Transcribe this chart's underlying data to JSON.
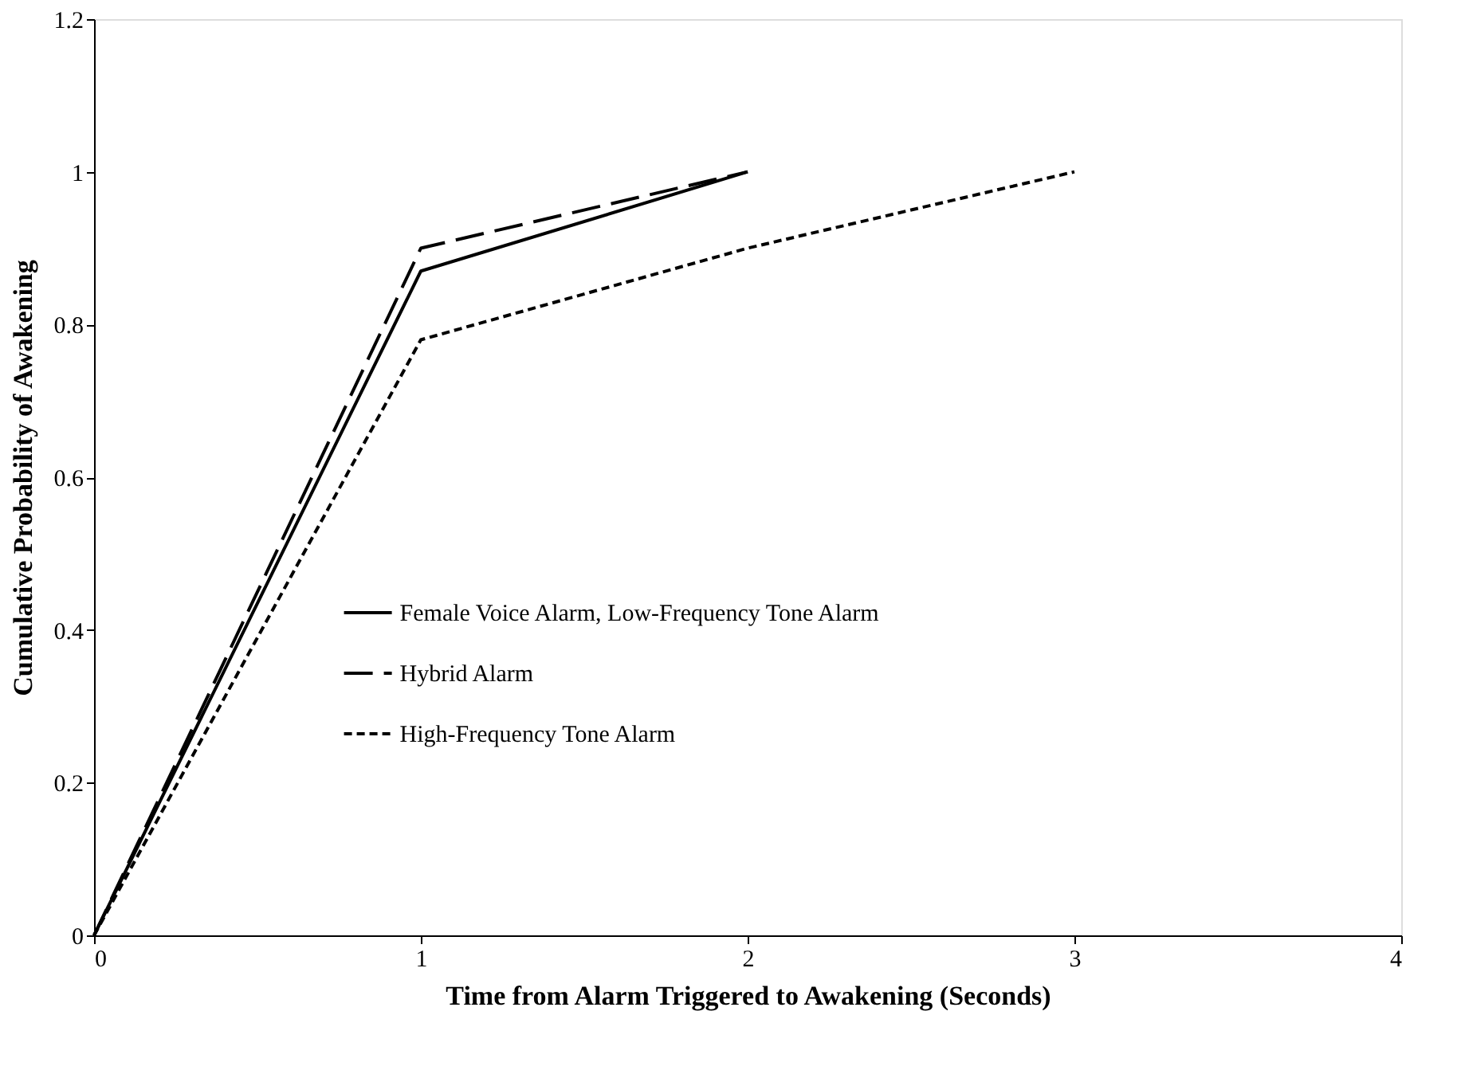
{
  "chart_data": {
    "type": "line",
    "xlabel": "Time from Alarm Triggered to Awakening (Seconds)",
    "ylabel": "Cumulative Probability of Awakening",
    "xlim": [
      0,
      4
    ],
    "xticks": [
      0,
      1,
      2,
      3,
      4
    ],
    "ylim": [
      0,
      1.2
    ],
    "yticks": [
      0,
      0.2,
      0.4,
      0.6,
      0.8,
      1,
      1.2
    ],
    "grid": false,
    "legend": "bottom left",
    "marker": "none",
    "series": [
      {
        "name": "Female Voice Alarm, Low-Frequency Tone Alarm",
        "color": "#000000",
        "line_style": "solid",
        "x": [
          0,
          1,
          2
        ],
        "values": [
          0,
          0.87,
          1
        ]
      },
      {
        "name": "Hybrid Alarm",
        "color": "#000000",
        "line_style": "dashed",
        "x": [
          0,
          1,
          2
        ],
        "values": [
          0,
          0.9,
          1
        ]
      },
      {
        "name": "High-Frequency Tone Alarm",
        "color": "#000000",
        "line_style": "dotted",
        "x": [
          0,
          1,
          2,
          3
        ],
        "values": [
          0,
          0.78,
          0.9,
          1
        ]
      }
    ]
  }
}
